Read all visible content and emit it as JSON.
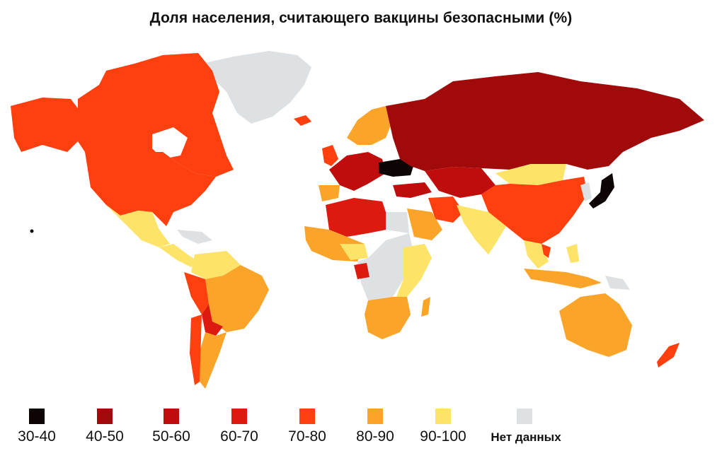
{
  "title": "Доля населения, считающего вакцины безопасными (%)",
  "legend": [
    {
      "label": "30-40",
      "color": "#0d0404"
    },
    {
      "label": "40-50",
      "color": "#a00a0a"
    },
    {
      "label": "50-60",
      "color": "#bf0c0c"
    },
    {
      "label": "60-70",
      "color": "#dd1a10"
    },
    {
      "label": "70-80",
      "color": "#ff3f0d"
    },
    {
      "label": "80-90",
      "color": "#fba42a"
    },
    {
      "label": "90-100",
      "color": "#fde468"
    },
    {
      "label": "Нет данных",
      "color": "#dde1e3"
    }
  ],
  "map_regions": [
    {
      "name": "canada",
      "category": "70-80"
    },
    {
      "name": "alaska",
      "category": "70-80"
    },
    {
      "name": "usa",
      "category": "70-80"
    },
    {
      "name": "greenland",
      "category": "Нет данных"
    },
    {
      "name": "mexico",
      "category": "90-100"
    },
    {
      "name": "central-america",
      "category": "90-100"
    },
    {
      "name": "brazil",
      "category": "80-90"
    },
    {
      "name": "peru",
      "category": "70-80"
    },
    {
      "name": "chile",
      "category": "70-80"
    },
    {
      "name": "argentina",
      "category": "80-90"
    },
    {
      "name": "russia",
      "category": "40-50"
    },
    {
      "name": "ukraine",
      "category": "30-40"
    },
    {
      "name": "western-europe",
      "category": "50-60"
    },
    {
      "name": "scandinavia",
      "category": "80-90"
    },
    {
      "name": "china",
      "category": "70-80"
    },
    {
      "name": "japan",
      "category": "30-40"
    },
    {
      "name": "india",
      "category": "90-100"
    },
    {
      "name": "middle-east",
      "category": "80-90"
    },
    {
      "name": "north-africa",
      "category": "60-70"
    },
    {
      "name": "central-africa",
      "category": "Нет данных"
    },
    {
      "name": "east-africa",
      "category": "90-100"
    },
    {
      "name": "southern-africa",
      "category": "80-90"
    },
    {
      "name": "australia",
      "category": "80-90"
    },
    {
      "name": "new-zealand",
      "category": "70-80"
    },
    {
      "name": "indonesia",
      "category": "80-90"
    }
  ]
}
